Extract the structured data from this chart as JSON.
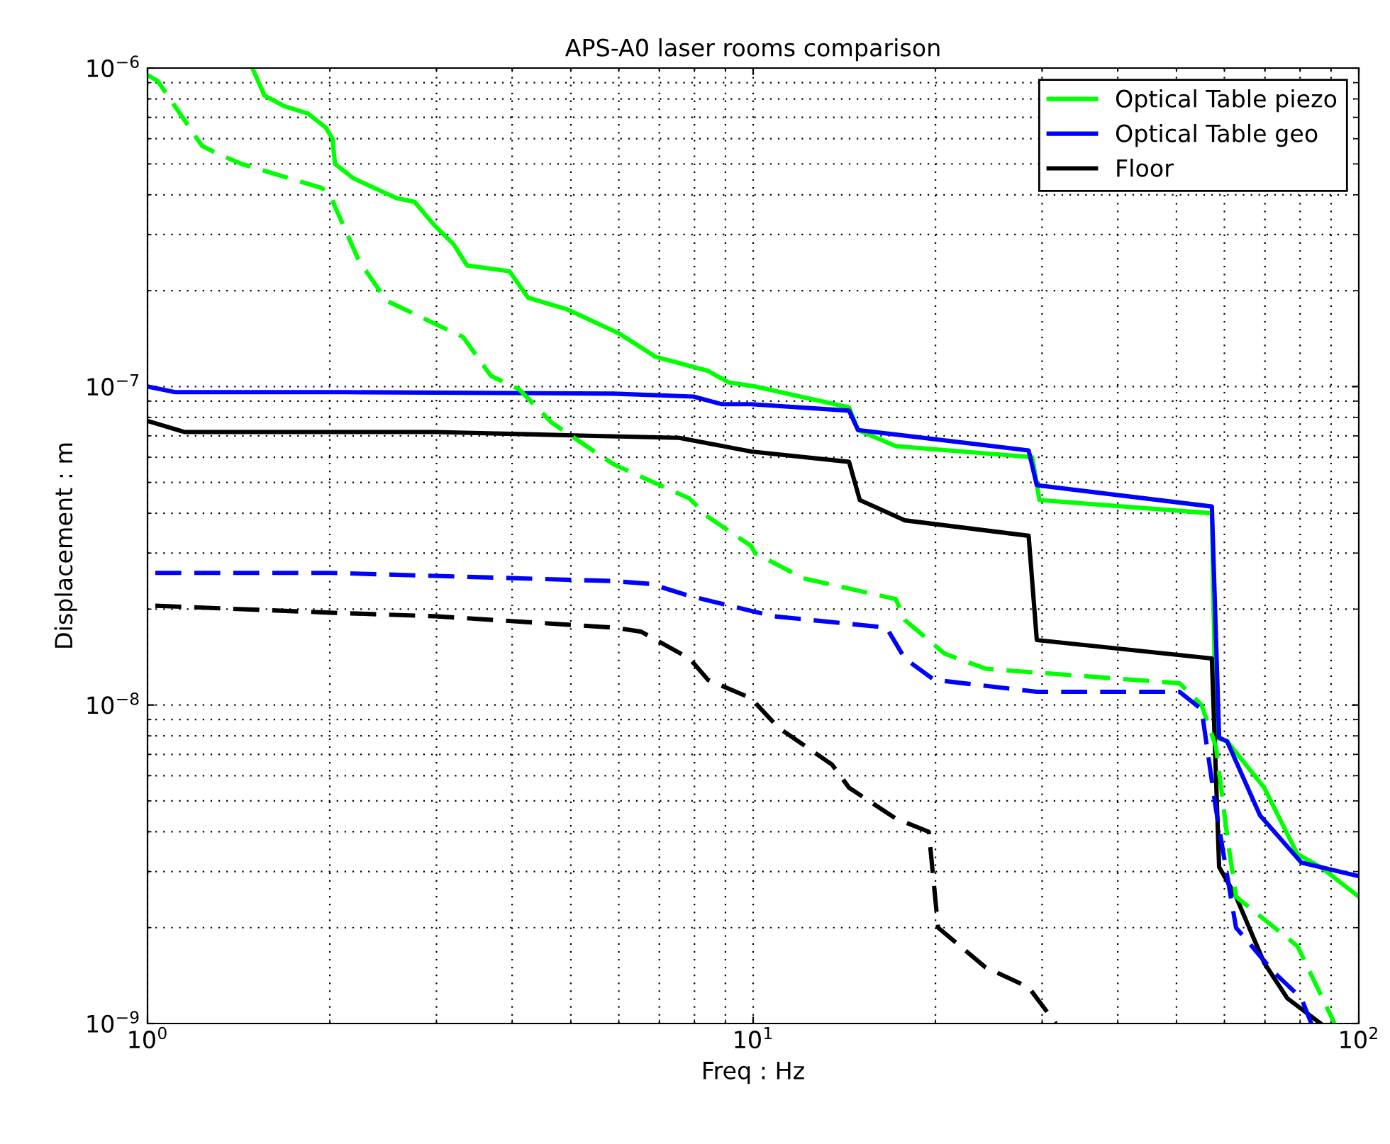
{
  "chart_data": {
    "type": "line",
    "title": "APS-A0 laser rooms comparison",
    "xlabel": "Freq : Hz",
    "ylabel": "Displacement : m",
    "log": "xy",
    "grid": true,
    "legend": "top right",
    "marker": "none",
    "xlim": [
      1,
      100
    ],
    "xticks": [
      {
        "value": 1,
        "label": "10$^{0}$"
      },
      {
        "value": 10,
        "label": "10$^{1}$"
      },
      {
        "value": 100,
        "label": "10$^{2}$"
      }
    ],
    "ylim": [
      1e-09,
      1e-06
    ],
    "yticks": [
      {
        "value": 1e-09,
        "label": "10$^{−9}$"
      },
      {
        "value": 1e-08,
        "label": "10$^{−8}$"
      },
      {
        "value": 1e-07,
        "label": "10$^{−7}$"
      },
      {
        "value": 1e-06,
        "label": "10$^{−6}$"
      }
    ],
    "series": [
      {
        "name": "Optical Table piezo",
        "color": "#00ff00",
        "line_style": "solid",
        "x": [
          1.49,
          1.56,
          1.68,
          1.84,
          1.97,
          2.02,
          2.04,
          2.19,
          2.58,
          2.76,
          2.98,
          3.2,
          3.37,
          3.96,
          4.25,
          4.92,
          6.0,
          6.9,
          8.42,
          9.12,
          10.07,
          14.4,
          14.9,
          17.2,
          28.9,
          29.7,
          57.2,
          58.1,
          60.6,
          69.8,
          79.2,
          86.5,
          100
        ],
        "values": [
          1e-06,
          8.2e-07,
          7.6e-07,
          7.2e-07,
          6.5e-07,
          6e-07,
          5e-07,
          4.5e-07,
          3.9e-07,
          3.8e-07,
          3.2e-07,
          2.8e-07,
          2.4e-07,
          2.3e-07,
          1.9e-07,
          1.75e-07,
          1.47e-07,
          1.24e-07,
          1.12e-07,
          1.03e-07,
          1e-07,
          8.6e-08,
          7.3e-08,
          6.5e-08,
          6e-08,
          4.4e-08,
          4e-08,
          7.9e-09,
          7.7e-09,
          5.5e-09,
          3.4e-09,
          3.1e-09,
          2.5e-09
        ]
      },
      {
        "name": "Optical Table geo",
        "color": "#0000ff",
        "line_style": "solid",
        "x": [
          1.0,
          1.11,
          2.11,
          5.88,
          7.97,
          8.88,
          9.92,
          14.4,
          14.9,
          28.5,
          29.4,
          57.2,
          58.8,
          60.6,
          68.7,
          80.4,
          100
        ],
        "values": [
          1e-07,
          9.6e-08,
          9.6e-08,
          9.5e-08,
          9.3e-08,
          8.8e-08,
          8.8e-08,
          8.4e-08,
          7.3e-08,
          6.3e-08,
          4.9e-08,
          4.2e-08,
          7.9e-09,
          7.7e-09,
          4.5e-09,
          3.2e-09,
          2.9e-09
        ]
      },
      {
        "name": "Floor",
        "color": "#000000",
        "line_style": "solid",
        "x": [
          1.0,
          1.15,
          2.98,
          5.47,
          7.55,
          8.55,
          9.92,
          14.4,
          15.0,
          17.8,
          28.5,
          29.4,
          57.2,
          58.8,
          62.7,
          69.8,
          76.2,
          86.5
        ],
        "values": [
          7.8e-08,
          7.2e-08,
          7.2e-08,
          7e-08,
          6.9e-08,
          6.6e-08,
          6.25e-08,
          5.8e-08,
          4.4e-08,
          3.8e-08,
          3.4e-08,
          1.6e-08,
          1.4e-08,
          3.1e-09,
          2.5e-09,
          1.55e-09,
          1.2e-09,
          1e-09
        ]
      },
      {
        "color": "#00ff00",
        "line_style": "dashed",
        "x": [
          1.0,
          1.04,
          1.23,
          1.3,
          1.43,
          1.94,
          2.0,
          2.23,
          2.48,
          3.32,
          3.69,
          4.11,
          4.65,
          5.88,
          7.85,
          8.42,
          9.92,
          10.07,
          12.1,
          17.2,
          17.8,
          20.7,
          24.2,
          50.6,
          55.0,
          58.1,
          60.6,
          62.7,
          79.2,
          91.2
        ],
        "values": [
          9.5e-07,
          9.1e-07,
          5.7e-07,
          5.4e-07,
          5e-07,
          4.2e-07,
          4e-07,
          2.5e-07,
          1.86e-07,
          1.43e-07,
          1.08e-07,
          9.8e-08,
          7.7e-08,
          5.7e-08,
          4.45e-08,
          3.9e-08,
          3.16e-08,
          3e-08,
          2.5e-08,
          2.15e-08,
          1.85e-08,
          1.45e-08,
          1.3e-08,
          1.17e-08,
          1e-08,
          7.4e-09,
          3.9e-09,
          2.5e-09,
          1.75e-09,
          1e-09
        ]
      },
      {
        "color": "#0000ff",
        "line_style": "dashed",
        "x": [
          1.03,
          2.0,
          5.88,
          6.78,
          7.85,
          10.8,
          16.6,
          17.8,
          19.9,
          29.4,
          50.6,
          55.0,
          58.1,
          62.7,
          72.4,
          80.4,
          83.5
        ],
        "values": [
          2.6e-08,
          2.6e-08,
          2.45e-08,
          2.4e-08,
          2.2e-08,
          1.9e-08,
          1.75e-08,
          1.4e-08,
          1.2e-08,
          1.1e-08,
          1.1e-08,
          9.7e-09,
          4.7e-09,
          2e-09,
          1.45e-09,
          1.2e-09,
          1e-09
        ]
      },
      {
        "color": "#000000",
        "line_style": "dashed",
        "x": [
          1.03,
          2.0,
          2.98,
          5.88,
          6.53,
          7.85,
          8.42,
          9.92,
          11.0,
          13.5,
          14.4,
          17.2,
          19.5,
          20.2,
          24.2,
          28.5,
          31.6
        ],
        "values": [
          2.05e-08,
          1.95e-08,
          1.9e-08,
          1.75e-08,
          1.7e-08,
          1.4e-08,
          1.2e-08,
          1.05e-08,
          8.5e-09,
          6.5e-09,
          5.5e-09,
          4.4e-09,
          4e-09,
          2e-09,
          1.5e-09,
          1.3e-09,
          1e-09
        ]
      }
    ]
  }
}
